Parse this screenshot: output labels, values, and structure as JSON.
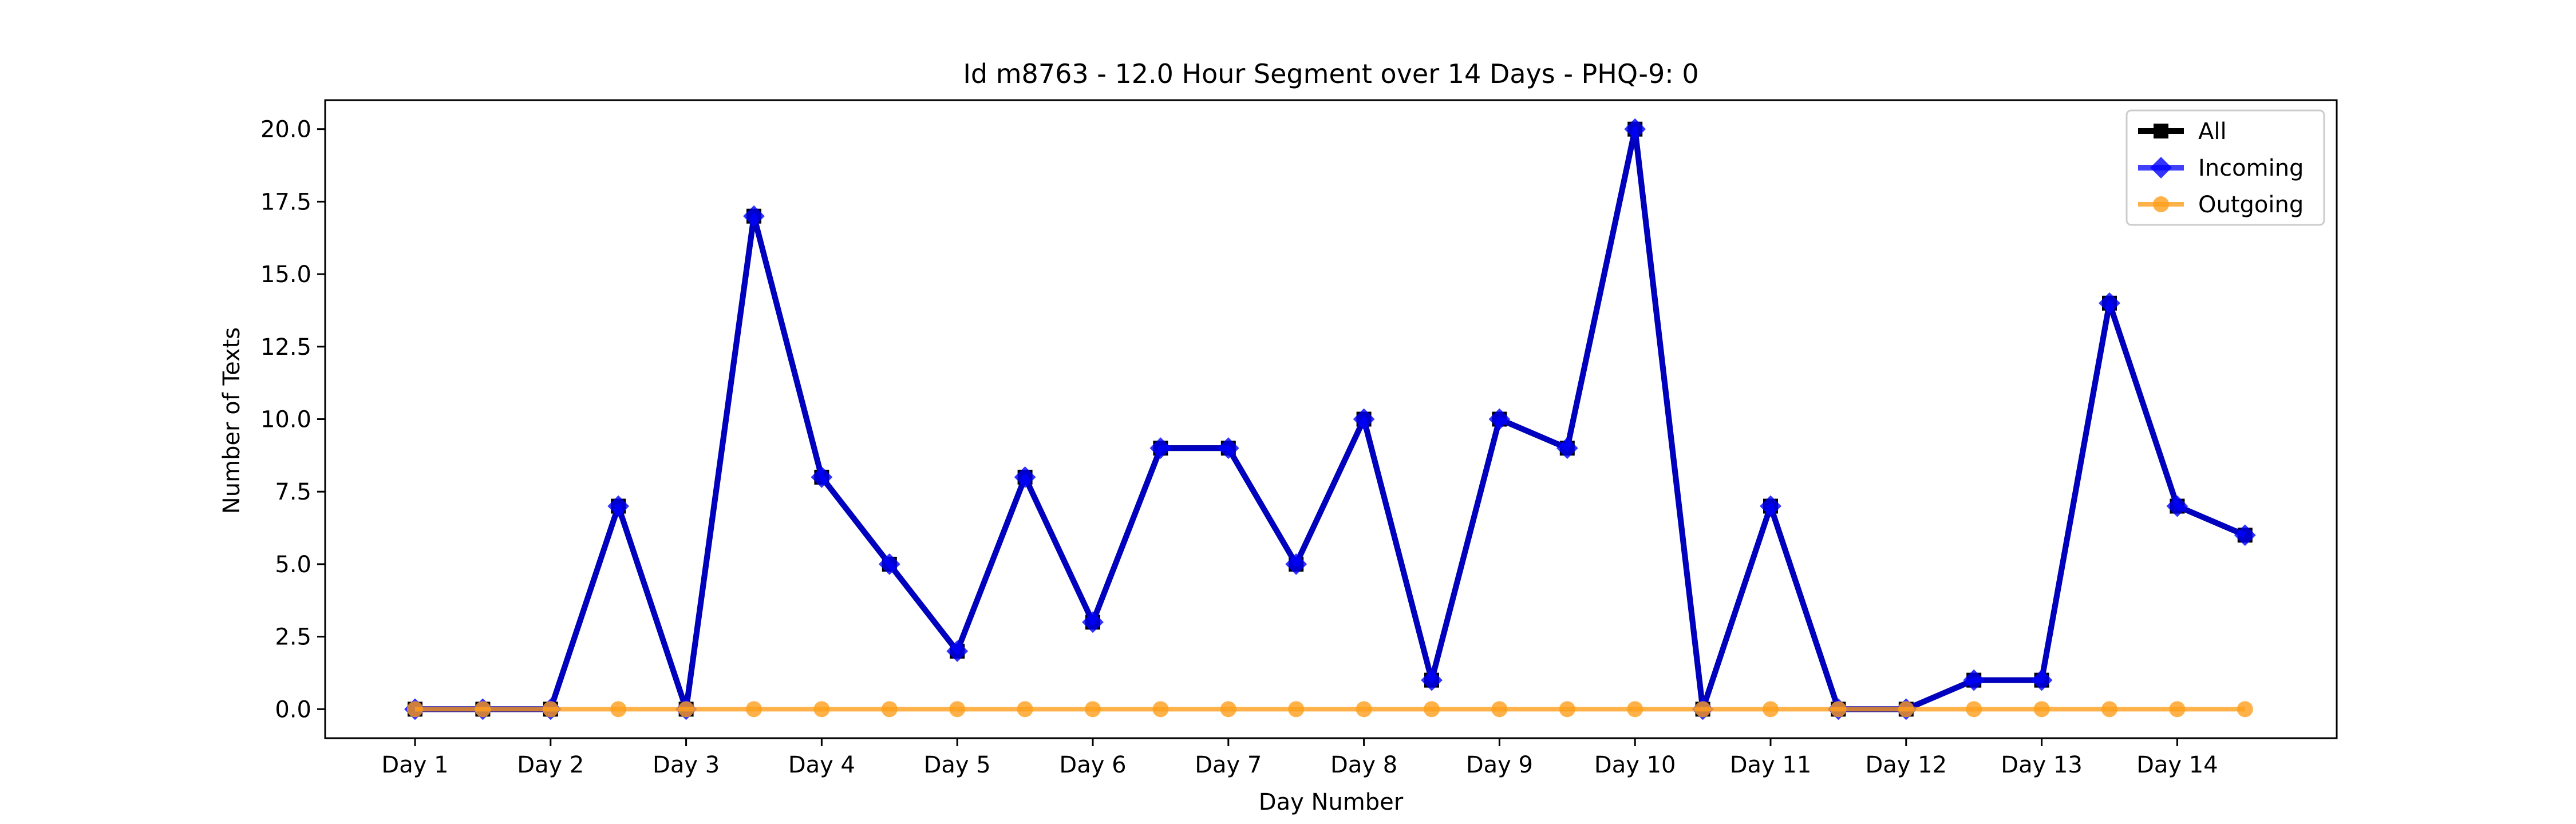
{
  "chart_data": {
    "type": "line",
    "title": "Id m8763 - 12.0 Hour Segment over 14 Days - PHQ-9: 0",
    "xlabel": "Day Number",
    "ylabel": "Number of Texts",
    "x_tick_labels": [
      "Day 1",
      "Day 2",
      "Day 3",
      "Day 4",
      "Day 5",
      "Day 6",
      "Day 7",
      "Day 8",
      "Day 9",
      "Day 10",
      "Day 11",
      "Day 12",
      "Day 13",
      "Day 14"
    ],
    "y_ticks": [
      "0.0",
      "2.5",
      "5.0",
      "7.5",
      "10.0",
      "12.5",
      "15.0",
      "17.5",
      "20.0"
    ],
    "ylim": [
      -1,
      21
    ],
    "legend_position": "top-right",
    "grid": false,
    "series": [
      {
        "name": "All",
        "color": "#000000",
        "marker": "square",
        "values": [
          0,
          0,
          0,
          7,
          0,
          17,
          8,
          5,
          2,
          8,
          3,
          9,
          9,
          5,
          10,
          1,
          10,
          9,
          20,
          0,
          7,
          0,
          0,
          1,
          1,
          14,
          7,
          6
        ]
      },
      {
        "name": "Incoming",
        "color": "#0000ff",
        "marker": "diamond",
        "values": [
          0,
          0,
          0,
          7,
          0,
          17,
          8,
          5,
          2,
          8,
          3,
          9,
          9,
          5,
          10,
          1,
          10,
          9,
          20,
          0,
          7,
          0,
          0,
          1,
          1,
          14,
          7,
          6
        ]
      },
      {
        "name": "Outgoing",
        "color": "#ff9f1c",
        "marker": "circle",
        "values": [
          0,
          0,
          0,
          0,
          0,
          0,
          0,
          0,
          0,
          0,
          0,
          0,
          0,
          0,
          0,
          0,
          0,
          0,
          0,
          0,
          0,
          0,
          0,
          0,
          0,
          0,
          0,
          0
        ]
      }
    ]
  }
}
